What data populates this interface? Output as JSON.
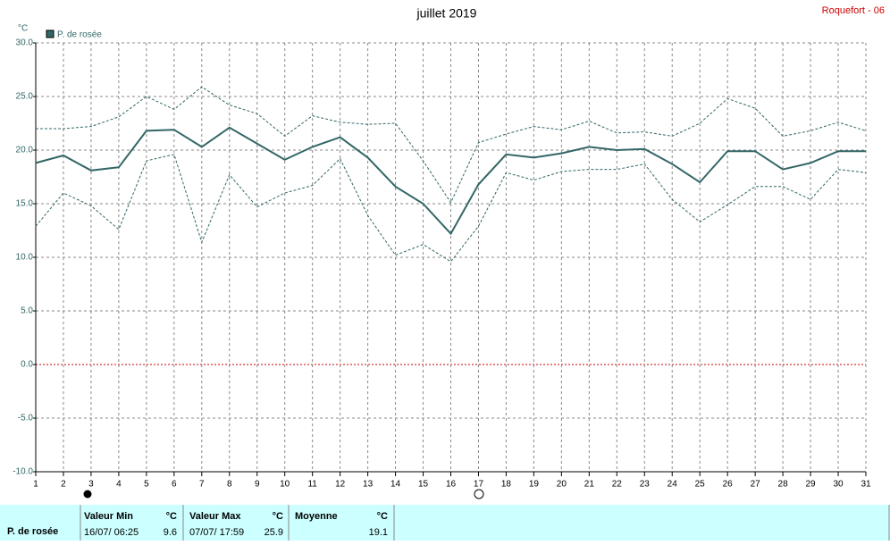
{
  "chart_data": {
    "type": "line",
    "title": "juillet 2019",
    "station": "Roquefort - 06",
    "y_unit": "°C",
    "x": [
      1,
      2,
      3,
      4,
      5,
      6,
      7,
      8,
      9,
      10,
      11,
      12,
      13,
      14,
      15,
      16,
      17,
      18,
      19,
      20,
      21,
      22,
      23,
      24,
      25,
      26,
      27,
      28,
      29,
      30,
      31
    ],
    "xlim": [
      1,
      31
    ],
    "xticks": [
      1,
      2,
      3,
      4,
      5,
      6,
      7,
      8,
      9,
      10,
      11,
      12,
      13,
      14,
      15,
      16,
      17,
      18,
      19,
      20,
      21,
      22,
      23,
      24,
      25,
      26,
      27,
      28,
      29,
      30,
      31
    ],
    "ylim": [
      -10,
      30
    ],
    "yticks": [
      {
        "value": 30,
        "label": "30.0"
      },
      {
        "value": 25,
        "label": "25.0"
      },
      {
        "value": 20,
        "label": "20.0"
      },
      {
        "value": 15,
        "label": "15.0"
      },
      {
        "value": 10,
        "label": "10.0"
      },
      {
        "value": 5,
        "label": "5.0"
      },
      {
        "value": 0,
        "label": "0.0"
      },
      {
        "value": -5,
        "label": "-5.0"
      },
      {
        "value": -10,
        "label": "-10.0"
      }
    ],
    "grid": true,
    "series": [
      {
        "name": "P. de rosée",
        "color": "#336666",
        "style": "solid",
        "values": [
          18.8,
          19.5,
          18.1,
          18.4,
          21.8,
          21.9,
          20.3,
          22.1,
          20.6,
          19.1,
          20.3,
          21.2,
          19.3,
          16.6,
          15.0,
          12.2,
          16.8,
          19.6,
          19.3,
          19.7,
          20.3,
          20.0,
          20.1,
          18.7,
          17.0,
          19.9,
          19.9,
          18.2,
          18.8,
          19.9,
          19.9
        ]
      },
      {
        "color": "#336666",
        "style": "dashed",
        "values": [
          22.0,
          22.0,
          22.2,
          23.1,
          25.0,
          23.8,
          25.9,
          24.2,
          23.4,
          21.3,
          23.2,
          22.6,
          22.4,
          22.5,
          19.0,
          15.1,
          20.7,
          21.5,
          22.2,
          21.9,
          22.7,
          21.6,
          21.7,
          21.3,
          22.5,
          24.8,
          23.9,
          21.3,
          21.8,
          22.6,
          21.8
        ]
      },
      {
        "color": "#336666",
        "style": "dashed",
        "values": [
          12.9,
          16.0,
          14.8,
          12.6,
          19.0,
          19.6,
          11.4,
          17.7,
          14.7,
          16.0,
          16.7,
          19.2,
          13.9,
          10.2,
          11.2,
          9.6,
          12.9,
          17.9,
          17.2,
          18.0,
          18.2,
          18.2,
          18.7,
          15.4,
          13.3,
          14.9,
          16.6,
          16.6,
          15.4,
          18.2,
          17.9
        ]
      }
    ]
  },
  "summary": {
    "label": "P. de rosée",
    "min": {
      "title": "Valeur Min",
      "unit": "°C",
      "date": "16/07/ 06:25",
      "value": "9.6"
    },
    "max": {
      "title": "Valeur Max",
      "unit": "°C",
      "date": "07/07/ 17:59",
      "value": "25.9"
    },
    "mean": {
      "title": "Moyenne",
      "unit": "°C",
      "value": "19.1"
    }
  }
}
